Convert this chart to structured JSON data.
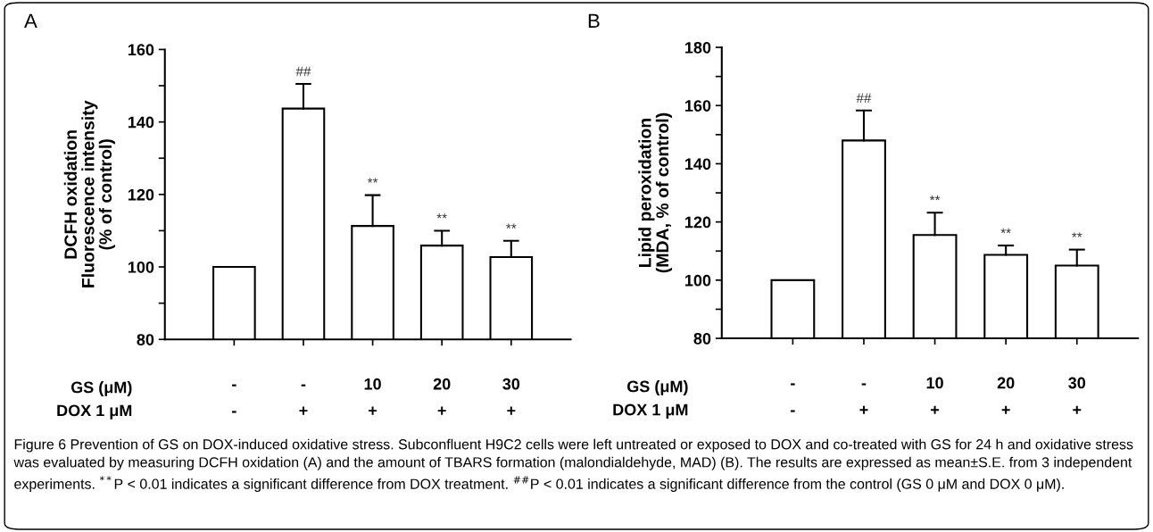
{
  "chart_data": [
    {
      "type": "bar",
      "title": "A",
      "ylabel": "DCFH oxidation\nFluorescence intensity\n(% of control)",
      "categories": [
        "-",
        "-",
        "10",
        "20",
        "30"
      ],
      "values": [
        100,
        143.7,
        111.3,
        105.9,
        102.7
      ],
      "color": "#ffffff",
      "errors": [
        null,
        [
          143.7,
          150.5
        ],
        [
          111.3,
          119.8
        ],
        [
          105.9,
          110.0
        ],
        [
          102.7,
          107.2
        ]
      ],
      "value_labels": [
        null,
        "##",
        "**",
        "**",
        "**"
      ],
      "ylim": [
        80,
        160
      ],
      "yticks": [
        80,
        {
          "value": 90,
          "label": null
        },
        100,
        {
          "value": 110,
          "label": null
        },
        120,
        {
          "value": 130,
          "label": null
        },
        140,
        {
          "value": 150,
          "label": null
        },
        160
      ],
      "grid": false,
      "annotations": [
        "GS (μM)",
        "DOX 1 μM",
        "-",
        "+",
        "+",
        "+",
        "+",
        "Figure 6 Prevention of GS on DOX-induced oxidative stress. Subconfluent H9C2 cells were left untreated or exposed to DOX and co-treated with GS for 24 h and oxidative stress was evaluated by measuring DCFH oxidation (A) and the amount of TBARS formation (malondialdehyde, MAD) (B). The results are expressed as mean±S.E. from 3 independent experiments. $^{**}$P < 0.01 indicates a significant difference from DOX treatment. $^{##}$P < 0.01 indicates a significant difference from the control (GS 0 μM and DOX 0 μM)."
      ]
    },
    {
      "type": "bar",
      "title": "B",
      "ylabel": "Lipid peroxidation\n(MDA, % of control)",
      "categories": [
        "-",
        "-",
        "10",
        "20",
        "30"
      ],
      "values": [
        100,
        148.0,
        115.5,
        108.7,
        105.0
      ],
      "color": "#ffffff",
      "errors": [
        null,
        [
          148.0,
          158.3
        ],
        [
          115.5,
          123.2
        ],
        [
          108.7,
          111.9
        ],
        [
          105.0,
          110.5
        ]
      ],
      "value_labels": [
        null,
        "##",
        "**",
        "**",
        "**"
      ],
      "ylim": [
        80,
        180
      ],
      "yticks": [
        80,
        {
          "value": 90,
          "label": null
        },
        100,
        {
          "value": 110,
          "label": null
        },
        120,
        {
          "value": 130,
          "label": null
        },
        140,
        {
          "value": 150,
          "label": null
        },
        160,
        {
          "value": 170,
          "label": null
        },
        180
      ],
      "grid": false,
      "annotations": [
        "GS (μM)",
        "DOX 1 μM",
        "-",
        "+",
        "+",
        "+",
        "+"
      ]
    }
  ]
}
